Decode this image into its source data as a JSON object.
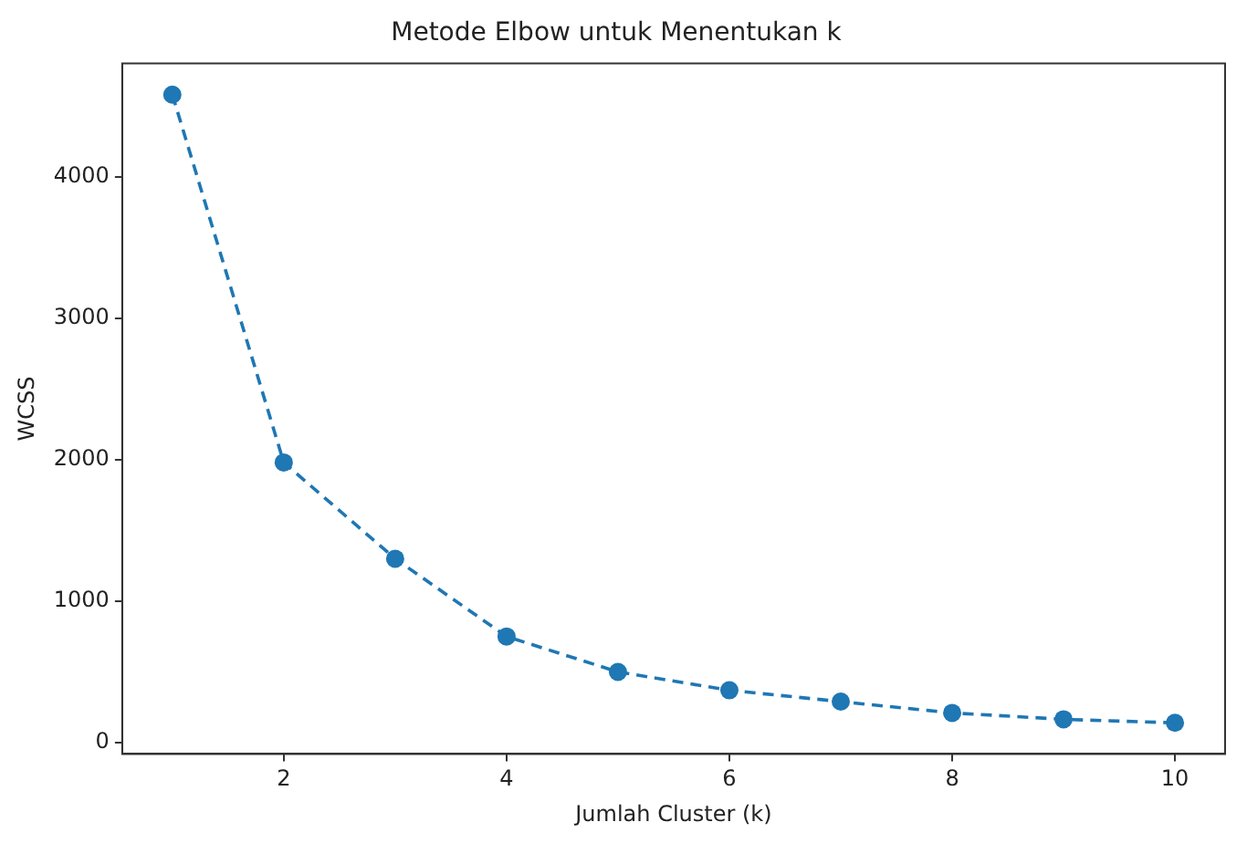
{
  "chart_data": {
    "type": "line",
    "title": "Metode Elbow untuk Menentukan k",
    "xlabel": "Jumlah Cluster (k)",
    "ylabel": "WCSS",
    "x": [
      1,
      2,
      3,
      4,
      5,
      6,
      7,
      8,
      9,
      10
    ],
    "series": [
      {
        "color": "#1f77b4",
        "values": [
          4580,
          1980,
          1300,
          750,
          500,
          370,
          290,
          210,
          165,
          140
        ]
      }
    ],
    "xlim": [
      0.55,
      10.45
    ],
    "xticks": [
      2,
      4,
      6,
      8,
      10
    ],
    "ylim": [
      -80,
      4800
    ],
    "yticks": [
      0,
      1000,
      2000,
      3000,
      4000
    ],
    "grid": false,
    "legend": false,
    "marker": "circle",
    "line_style": "dashed"
  }
}
